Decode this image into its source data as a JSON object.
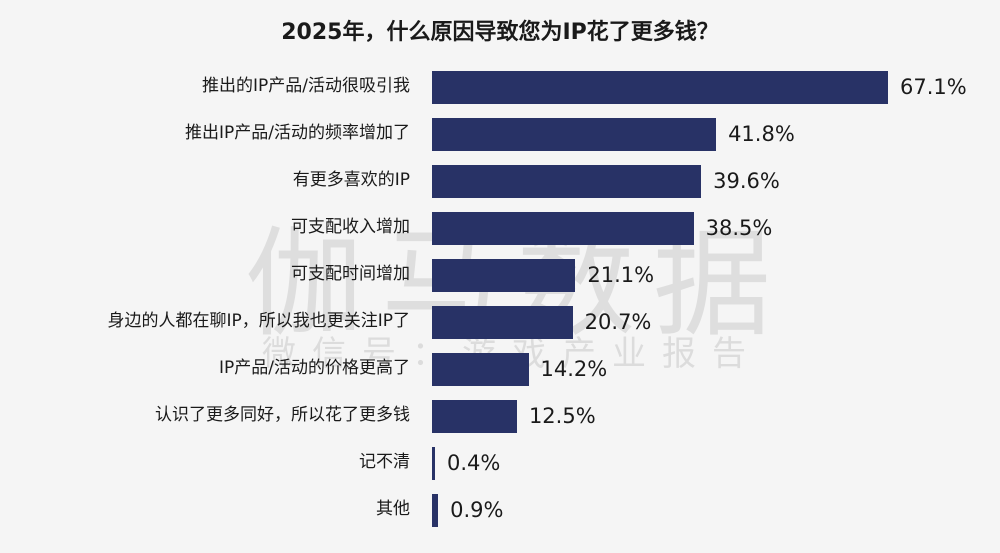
{
  "chart_data": {
    "type": "bar",
    "orientation": "horizontal",
    "title": "2025年，什么原因导致您为IP花了更多钱？",
    "categories": [
      "推出的IP产品/活动很吸引我",
      "推出IP产品/活动的频率增加了",
      "有更多喜欢的IP",
      "可支配收入增加",
      "可支配时间增加",
      "身边的人都在聊IP，所以我也更关注IP了",
      "IP产品/活动的价格更高了",
      "认识了更多同好，所以花了更多钱",
      "记不清",
      "其他"
    ],
    "values": [
      67.1,
      41.8,
      39.6,
      38.5,
      21.1,
      20.7,
      14.2,
      12.5,
      0.4,
      0.9
    ],
    "labels": [
      "67.1%",
      "41.8%",
      "39.6%",
      "38.5%",
      "21.1%",
      "20.7%",
      "14.2%",
      "12.5%",
      "0.4%",
      "0.9%"
    ],
    "unit": "%",
    "bar_color": "#283266",
    "grid": false,
    "legend": "none"
  },
  "watermark": {
    "main": "伽马数据",
    "sub": "微信号：游戏产业报告"
  }
}
